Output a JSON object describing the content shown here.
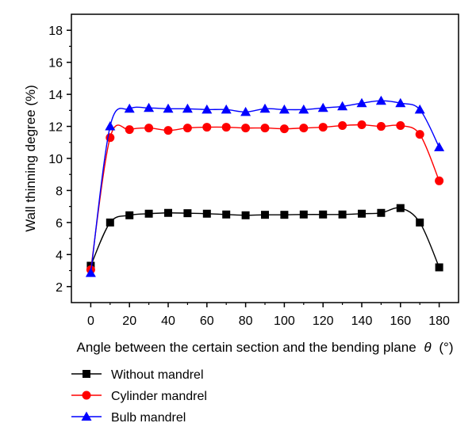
{
  "chart_data": {
    "type": "line",
    "title": "",
    "xlabel": "Angle between the certain section and the bending plane",
    "xlabel_symbol": "θ",
    "xlabel_unit": "(°)",
    "ylabel": "Wall thinning degree (%)",
    "xlim": [
      -10,
      190
    ],
    "ylim": [
      1,
      19
    ],
    "xticks": [
      0,
      20,
      40,
      60,
      80,
      100,
      120,
      140,
      160,
      180
    ],
    "yticks": [
      2,
      4,
      6,
      8,
      10,
      12,
      14,
      16,
      18
    ],
    "grid": false,
    "legend_position": "below",
    "x": [
      0,
      10,
      20,
      30,
      40,
      50,
      60,
      70,
      80,
      90,
      100,
      110,
      120,
      130,
      140,
      150,
      160,
      170,
      180
    ],
    "series": [
      {
        "name": "Without mandrel",
        "marker": "square",
        "color": "#000000",
        "values": [
          3.3,
          6.0,
          6.45,
          6.55,
          6.6,
          6.58,
          6.55,
          6.5,
          6.45,
          6.48,
          6.48,
          6.5,
          6.5,
          6.5,
          6.55,
          6.6,
          6.9,
          6.0,
          3.2
        ]
      },
      {
        "name": "Cylinder mandrel",
        "marker": "circle",
        "color": "#ff0000",
        "values": [
          3.05,
          11.3,
          11.8,
          11.9,
          11.75,
          11.9,
          11.95,
          11.95,
          11.9,
          11.9,
          11.85,
          11.9,
          11.95,
          12.05,
          12.1,
          12.0,
          12.05,
          11.5,
          8.6
        ]
      },
      {
        "name": "Bulb mandrel",
        "marker": "triangle",
        "color": "#0000ff",
        "values": [
          2.85,
          12.0,
          13.1,
          13.15,
          13.1,
          13.1,
          13.05,
          13.05,
          12.9,
          13.1,
          13.05,
          13.05,
          13.15,
          13.25,
          13.45,
          13.6,
          13.45,
          13.05,
          10.7
        ]
      }
    ]
  }
}
